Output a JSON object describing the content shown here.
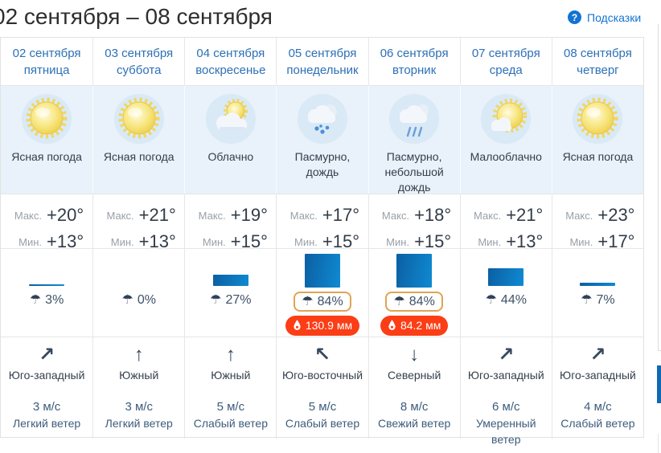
{
  "page": {
    "title": "02 сентября – 08 сентября",
    "hints": {
      "label": "Подсказки",
      "icon_char": "?"
    }
  },
  "labels": {
    "max": "Макс.",
    "min": "Мин."
  },
  "icons": {
    "umbrella": "☂"
  },
  "colors": {
    "accent_blue": "#2d70b6",
    "link_blue": "#1273d2",
    "bar_gradient": [
      "#0c5fa2",
      "#0f8ad2"
    ],
    "badge_red": "#fb3e16",
    "highlight_orange": "#e0a455",
    "icon_row_bg": "#e9f1fa"
  },
  "days": [
    {
      "date": "02 сентября",
      "weekday": "пятница",
      "condition": "Ясная погода",
      "icon": "sun",
      "temp_max": "+20°",
      "temp_min": "+13°",
      "precip": {
        "percent": 3,
        "percent_label": "3%",
        "highlighted": false
      },
      "wind": {
        "arrow": "↗",
        "direction": "Юго-западный",
        "speed": "3 м/с",
        "description": "Легкий ветер"
      }
    },
    {
      "date": "03 сентября",
      "weekday": "суббота",
      "condition": "Ясная погода",
      "icon": "sun",
      "temp_max": "+21°",
      "temp_min": "+13°",
      "precip": {
        "percent": 0,
        "percent_label": "0%",
        "highlighted": false
      },
      "wind": {
        "arrow": "↑",
        "direction": "Южный",
        "speed": "3 м/с",
        "description": "Легкий ветер"
      }
    },
    {
      "date": "04 сентября",
      "weekday": "воскресенье",
      "condition": "Облачно",
      "icon": "sun-behind-clouds",
      "temp_max": "+19°",
      "temp_min": "+15°",
      "precip": {
        "percent": 27,
        "percent_label": "27%",
        "highlighted": false
      },
      "wind": {
        "arrow": "↑",
        "direction": "Южный",
        "speed": "5 м/с",
        "description": "Слабый ветер"
      }
    },
    {
      "date": "05 сентября",
      "weekday": "понедельник",
      "condition": "Пасмурно, дождь",
      "icon": "cloud-rain-drops",
      "temp_max": "+17°",
      "temp_min": "+15°",
      "precip": {
        "percent": 84,
        "percent_label": "84%",
        "highlighted": true,
        "amount": "130.9 мм"
      },
      "wind": {
        "arrow": "↖",
        "direction": "Юго-восточный",
        "speed": "5 м/с",
        "description": "Слабый ветер"
      }
    },
    {
      "date": "06 сентября",
      "weekday": "вторник",
      "condition": "Пасмурно, небольшой дождь",
      "icon": "cloud-light-rain",
      "temp_max": "+18°",
      "temp_min": "+15°",
      "precip": {
        "percent": 84,
        "percent_label": "84%",
        "highlighted": true,
        "amount": "84.2 мм"
      },
      "wind": {
        "arrow": "↓",
        "direction": "Северный",
        "speed": "8 м/с",
        "description": "Свежий ветер"
      }
    },
    {
      "date": "07 сентября",
      "weekday": "среда",
      "condition": "Малооблачно",
      "icon": "sun-small-cloud",
      "temp_max": "+21°",
      "temp_min": "+13°",
      "precip": {
        "percent": 44,
        "percent_label": "44%",
        "highlighted": false
      },
      "wind": {
        "arrow": "↗",
        "direction": "Юго-западный",
        "speed": "6 м/с",
        "description": "Умеренный ветер"
      }
    },
    {
      "date": "08 сентября",
      "weekday": "четверг",
      "condition": "Ясная погода",
      "icon": "sun",
      "temp_max": "+23°",
      "temp_min": "+17°",
      "precip": {
        "percent": 7,
        "percent_label": "7%",
        "highlighted": false
      },
      "wind": {
        "arrow": "↗",
        "direction": "Юго-западный",
        "speed": "4 м/с",
        "description": "Слабый ветер"
      }
    }
  ]
}
